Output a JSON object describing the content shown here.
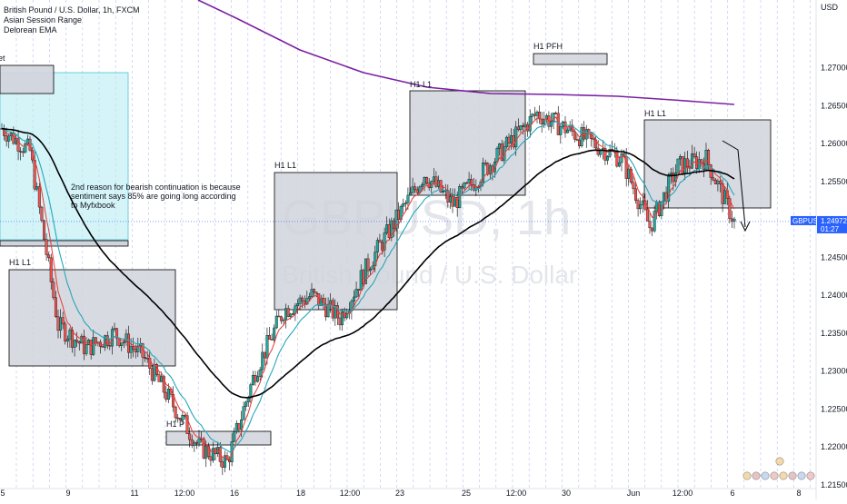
{
  "header": {
    "symbol_line": "British Pound / U.S. Dollar, 1h, FXCM",
    "indicator1": "Asian Session Range",
    "indicator2": "Delorean EMA"
  },
  "axis": {
    "currency": "USD",
    "price_ticks": [
      "1.27000",
      "1.26500",
      "1.26000",
      "1.25500",
      "1.25000",
      "1.24500",
      "1.24000",
      "1.23500",
      "1.23000",
      "1.22500",
      "1.22000",
      "1.21500"
    ],
    "time_ticks": [
      "5",
      "9",
      "11",
      "12:00",
      "16",
      "18",
      "12:00",
      "23",
      "25",
      "12:00",
      "30",
      "Jun",
      "12:00",
      "6",
      "8"
    ]
  },
  "price_tag": {
    "symbol": "GBPUSD",
    "price": "1.24972",
    "countdown": "01:27"
  },
  "watermark": {
    "symbol": "GBPUSD, 1h",
    "name": "British Pound / U.S. Dollar"
  },
  "annotations": {
    "note_line1": "2nd reason for bearish continuation is because",
    "note_line2": " sentiment says 85% are going long according",
    "note_line3": "to Myfxbook",
    "label_h1l1_a": "H1 L1",
    "label_h1l1_b": "H1 L1",
    "label_h1l1_c": "H1 L1",
    "label_h1l1_d": "H1 L1",
    "label_h1pfh": "H1 PFH",
    "label_h1p": "H1 P",
    "label_cut": "et"
  },
  "colors": {
    "purple_ema": "#7b1fa2",
    "black_ema": "#000000",
    "teal_ema": "#26a6b8",
    "red_ema": "#e53935",
    "bull": "#26a69a",
    "bear": "#ef5350",
    "zone_fill": "#d1d4dc",
    "cyan_zone": "#b2ebf2",
    "tag_bg": "#2962ff"
  },
  "chart_data": {
    "type": "candlestick",
    "symbol": "GBPUSD",
    "timeframe": "1h",
    "ylim": [
      1.2145,
      1.2775
    ],
    "last_price": 1.24972,
    "price_path": {
      "x": [
        "5",
        "",
        "9",
        "",
        "11",
        "",
        "12:00",
        "",
        "16",
        "",
        "18",
        "",
        "12:00",
        "",
        "23",
        "",
        "25",
        "",
        "12:00",
        "",
        "30",
        "",
        "Jun",
        "",
        "12:00",
        "",
        "6"
      ],
      "close": [
        1.262,
        1.259,
        1.236,
        1.233,
        1.235,
        1.232,
        1.226,
        1.22,
        1.218,
        1.23,
        1.238,
        1.24,
        1.237,
        1.244,
        1.25,
        1.256,
        1.252,
        1.256,
        1.26,
        1.264,
        1.262,
        1.26,
        1.258,
        1.249,
        1.257,
        1.258,
        1.2497
      ]
    },
    "zones": [
      {
        "label": "H1 L1",
        "from": "5",
        "to": "12:00",
        "high": 1.2395,
        "low": 1.227
      },
      {
        "label": "H1 P",
        "from": "12:00",
        "to": "16",
        "high": 1.2185,
        "low": 1.2168
      },
      {
        "label": "H1 L1",
        "from": "16",
        "to": "23",
        "high": 1.2518,
        "low": 1.234
      },
      {
        "label": "H1 L1",
        "from": "23",
        "to": "12:00",
        "high": 1.2615,
        "low": 1.2485
      },
      {
        "label": "H1 PFH",
        "from": "30",
        "to": "30",
        "high": 1.2665,
        "low": 1.2652
      },
      {
        "label": "",
        "from": "Jun",
        "to": "6",
        "high": 1.2582,
        "low": 1.247
      }
    ]
  }
}
